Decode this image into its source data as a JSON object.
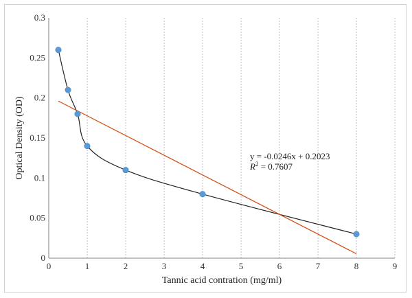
{
  "chart_data": {
    "type": "scatter",
    "title": "",
    "xlabel": "Tannic acid contration (mg/ml)",
    "ylabel": "Optical Density (OD)",
    "xlim": [
      0,
      9
    ],
    "ylim": [
      0,
      0.3
    ],
    "x_ticks": [
      "0",
      "1",
      "2",
      "3",
      "4",
      "5",
      "6",
      "7",
      "8",
      "9"
    ],
    "y_ticks": [
      "0",
      "0.05",
      "0.1",
      "0.15",
      "0.2",
      "0.25",
      "0.3"
    ],
    "grid": "vertical-dashed",
    "points": {
      "x": [
        0.25,
        0.5,
        0.75,
        1,
        2,
        4,
        8
      ],
      "y": [
        0.26,
        0.21,
        0.18,
        0.14,
        0.11,
        0.08,
        0.03
      ]
    },
    "trendline": {
      "type": "linear",
      "slope": -0.0246,
      "intercept": 0.2023,
      "x_range": [
        0.25,
        8
      ]
    },
    "annotation": {
      "equation": "y = -0.0246x + 0.2023",
      "r2_label": "R",
      "r2_sup": "2",
      "r2_value": " = 0.7607"
    },
    "colors": {
      "points": "#5b9bd5",
      "smooth_line": "#222222",
      "trendline": "#d0531c",
      "grid": "#bfbfbf"
    }
  }
}
